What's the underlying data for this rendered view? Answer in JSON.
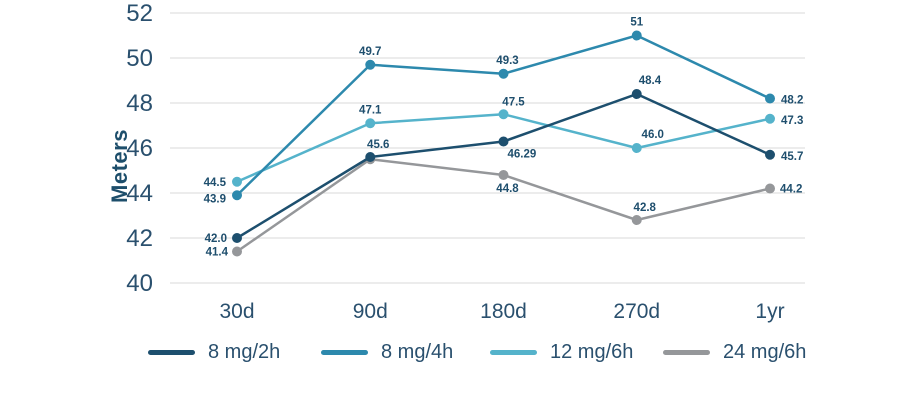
{
  "chart_data": {
    "type": "line",
    "title": "",
    "ylabel": "Meters",
    "xlabel": "",
    "categories": [
      "30d",
      "90d",
      "180d",
      "270d",
      "1yr"
    ],
    "ylim": [
      40,
      52
    ],
    "yticks": [
      40,
      42,
      44,
      46,
      48,
      50,
      52
    ],
    "grid": true,
    "legend_position": "bottom",
    "colors": {
      "grid": "#d9d9d9",
      "axis_text": "#2a506e",
      "data_label_text": "#1e4e6d"
    },
    "series": [
      {
        "name": "8 mg/2h",
        "color": "#1d4f6e",
        "values": [
          42.0,
          45.6,
          46.29,
          48.4,
          45.7
        ],
        "labels": [
          {
            "text": "42.0",
            "anchor": "end",
            "dx": -10,
            "dy": 4
          },
          {
            "text": "45.6",
            "anchor": "middle",
            "dx": 8,
            "dy": -9
          },
          {
            "text": "46.29",
            "anchor": "start",
            "dx": 4,
            "dy": 16
          },
          {
            "text": "48.4",
            "anchor": "start",
            "dx": 2,
            "dy": -10
          },
          {
            "text": "45.7",
            "anchor": "start",
            "dx": 11,
            "dy": 5
          }
        ]
      },
      {
        "name": "8 mg/4h",
        "color": "#2d89ad",
        "values": [
          43.9,
          49.7,
          49.3,
          51,
          48.2
        ],
        "labels": [
          {
            "text": "43.9",
            "anchor": "end",
            "dx": -11,
            "dy": 7
          },
          {
            "text": "49.7",
            "anchor": "middle",
            "dx": 0,
            "dy": -10
          },
          {
            "text": "49.3",
            "anchor": "middle",
            "dx": 4,
            "dy": -10
          },
          {
            "text": "51",
            "anchor": "middle",
            "dx": 0,
            "dy": -10
          },
          {
            "text": "48.2",
            "anchor": "start",
            "dx": 11,
            "dy": 5
          }
        ]
      },
      {
        "name": "12 mg/6h",
        "color": "#55b3cb",
        "values": [
          44.5,
          47.1,
          47.5,
          46.0,
          47.3
        ],
        "labels": [
          {
            "text": "44.5",
            "anchor": "end",
            "dx": -11,
            "dy": 4
          },
          {
            "text": "47.1",
            "anchor": "middle",
            "dx": 0,
            "dy": -10
          },
          {
            "text": "47.5",
            "anchor": "middle",
            "dx": 10,
            "dy": -9
          },
          {
            "text": "46.0",
            "anchor": "middle",
            "dx": 16,
            "dy": -10
          },
          {
            "text": "47.3",
            "anchor": "start",
            "dx": 11,
            "dy": 5
          }
        ]
      },
      {
        "name": "24 mg/6h",
        "color": "#95979a",
        "values": [
          41.4,
          45.5,
          44.8,
          42.8,
          44.2
        ],
        "labels": [
          {
            "text": "41.4",
            "anchor": "end",
            "dx": -9,
            "dy": 4
          },
          null,
          {
            "text": "44.8",
            "anchor": "middle",
            "dx": 4,
            "dy": 17
          },
          {
            "text": "42.8",
            "anchor": "middle",
            "dx": 8,
            "dy": -9
          },
          {
            "text": "44.2",
            "anchor": "start",
            "dx": 10,
            "dy": 4
          }
        ]
      }
    ]
  },
  "legend": {
    "items": [
      "8 mg/2h",
      "8 mg/4h",
      "12 mg/6h",
      "24 mg/6h"
    ]
  }
}
